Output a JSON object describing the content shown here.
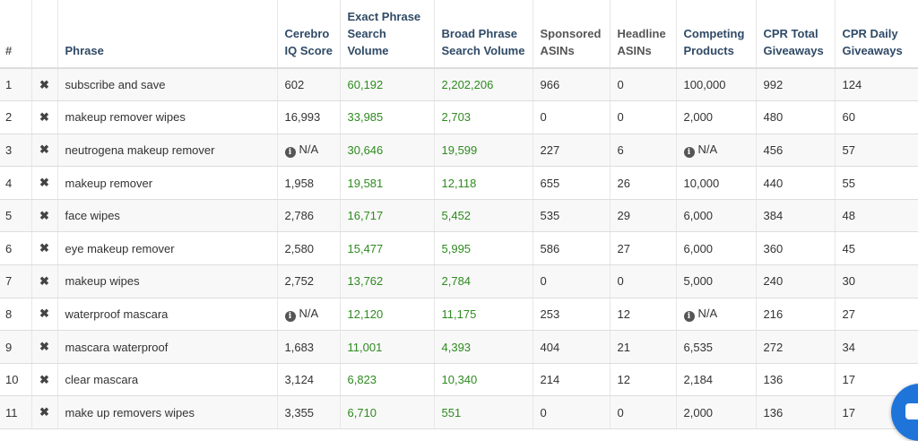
{
  "table": {
    "columns": [
      {
        "label": "#",
        "style": "hash"
      },
      {
        "label": "",
        "style": "grey"
      },
      {
        "label": "Phrase",
        "style": "blue"
      },
      {
        "label": "Cerebro IQ Score",
        "style": "blue"
      },
      {
        "label": "Exact Phrase Search Volume",
        "style": "blue"
      },
      {
        "label": "Broad Phrase Search Volume",
        "style": "blue"
      },
      {
        "label": "Sponsored ASINs",
        "style": "grey"
      },
      {
        "label": "Headline ASINs",
        "style": "grey"
      },
      {
        "label": "Competing Products",
        "style": "blue"
      },
      {
        "label": "CPR Total Giveaways",
        "style": "blue"
      },
      {
        "label": "CPR Daily Giveaways",
        "style": "blue"
      }
    ],
    "remove_icon": "close-icon",
    "na_icon": "info-circle-icon",
    "colors": {
      "green_value": "#2e8b1f",
      "header_blue": "#2f4a66",
      "chat_button": "#1f74d9"
    },
    "rows": [
      {
        "num": "1",
        "phrase": "subscribe and save",
        "iq": "602",
        "iq_na": false,
        "exact": "60,192",
        "broad": "2,202,206",
        "sponsored": "966",
        "headline": "0",
        "competing": "100,000",
        "competing_na": false,
        "cpr_total": "992",
        "cpr_daily": "124"
      },
      {
        "num": "2",
        "phrase": "makeup remover wipes",
        "iq": "16,993",
        "iq_na": false,
        "exact": "33,985",
        "broad": "2,703",
        "sponsored": "0",
        "headline": "0",
        "competing": "2,000",
        "competing_na": false,
        "cpr_total": "480",
        "cpr_daily": "60"
      },
      {
        "num": "3",
        "phrase": "neutrogena makeup remover",
        "iq": "N/A",
        "iq_na": true,
        "exact": "30,646",
        "broad": "19,599",
        "sponsored": "227",
        "headline": "6",
        "competing": "N/A",
        "competing_na": true,
        "cpr_total": "456",
        "cpr_daily": "57"
      },
      {
        "num": "4",
        "phrase": "makeup remover",
        "iq": "1,958",
        "iq_na": false,
        "exact": "19,581",
        "broad": "12,118",
        "sponsored": "655",
        "headline": "26",
        "competing": "10,000",
        "competing_na": false,
        "cpr_total": "440",
        "cpr_daily": "55"
      },
      {
        "num": "5",
        "phrase": "face wipes",
        "iq": "2,786",
        "iq_na": false,
        "exact": "16,717",
        "broad": "5,452",
        "sponsored": "535",
        "headline": "29",
        "competing": "6,000",
        "competing_na": false,
        "cpr_total": "384",
        "cpr_daily": "48"
      },
      {
        "num": "6",
        "phrase": "eye makeup remover",
        "iq": "2,580",
        "iq_na": false,
        "exact": "15,477",
        "broad": "5,995",
        "sponsored": "586",
        "headline": "27",
        "competing": "6,000",
        "competing_na": false,
        "cpr_total": "360",
        "cpr_daily": "45"
      },
      {
        "num": "7",
        "phrase": "makeup wipes",
        "iq": "2,752",
        "iq_na": false,
        "exact": "13,762",
        "broad": "2,784",
        "sponsored": "0",
        "headline": "0",
        "competing": "5,000",
        "competing_na": false,
        "cpr_total": "240",
        "cpr_daily": "30"
      },
      {
        "num": "8",
        "phrase": "waterproof mascara",
        "iq": "N/A",
        "iq_na": true,
        "exact": "12,120",
        "broad": "11,175",
        "sponsored": "253",
        "headline": "12",
        "competing": "N/A",
        "competing_na": true,
        "cpr_total": "216",
        "cpr_daily": "27"
      },
      {
        "num": "9",
        "phrase": "mascara waterproof",
        "iq": "1,683",
        "iq_na": false,
        "exact": "11,001",
        "broad": "4,393",
        "sponsored": "404",
        "headline": "21",
        "competing": "6,535",
        "competing_na": false,
        "cpr_total": "272",
        "cpr_daily": "34"
      },
      {
        "num": "10",
        "phrase": "clear mascara",
        "iq": "3,124",
        "iq_na": false,
        "exact": "6,823",
        "broad": "10,340",
        "sponsored": "214",
        "headline": "12",
        "competing": "2,184",
        "competing_na": false,
        "cpr_total": "136",
        "cpr_daily": "17"
      },
      {
        "num": "11",
        "phrase": "make up removers wipes",
        "iq": "3,355",
        "iq_na": false,
        "exact": "6,710",
        "broad": "551",
        "sponsored": "0",
        "headline": "0",
        "competing": "2,000",
        "competing_na": false,
        "cpr_total": "136",
        "cpr_daily": "17"
      }
    ]
  },
  "chat": {
    "icon": "chat-icon"
  }
}
